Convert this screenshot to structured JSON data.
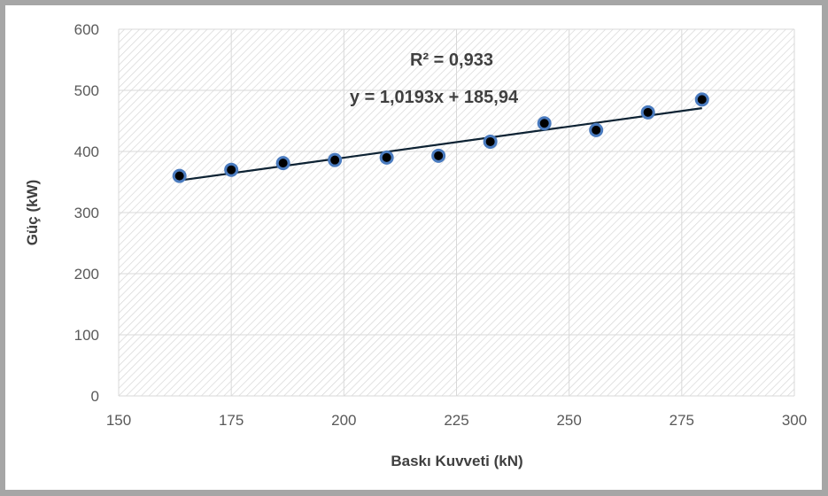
{
  "chart_data": {
    "type": "scatter",
    "xlabel": "Baskı Kuvveti (kN)",
    "ylabel": "Güç (kW)",
    "xlim": [
      150,
      300
    ],
    "ylim": [
      0,
      600
    ],
    "x_ticks": [
      "150",
      "175",
      "200",
      "225",
      "250",
      "275",
      "300"
    ],
    "y_ticks": [
      "0",
      "100",
      "200",
      "300",
      "400",
      "500",
      "600"
    ],
    "grid": true,
    "legend": "none",
    "series": [
      {
        "x": [
          163.5,
          175,
          186.5,
          198,
          209.5,
          221,
          232.5,
          244.5,
          256,
          267.5,
          279.5
        ],
        "y": [
          360,
          370,
          381,
          386,
          390,
          393,
          416,
          446,
          435,
          464,
          485
        ]
      }
    ],
    "trendline": {
      "slope": 1.0193,
      "intercept": 185.94,
      "x_range": [
        163.5,
        279.5
      ]
    },
    "annotations": {
      "r2": "R² = 0,933",
      "equation": "y = 1,0193x + 185,94"
    },
    "colors": {
      "marker_fill": "#000000",
      "marker_edge": "#4a7bbf",
      "trendline": "#0d2233",
      "grid": "#d9d9d9",
      "hatch": "#cfcfcf"
    }
  }
}
